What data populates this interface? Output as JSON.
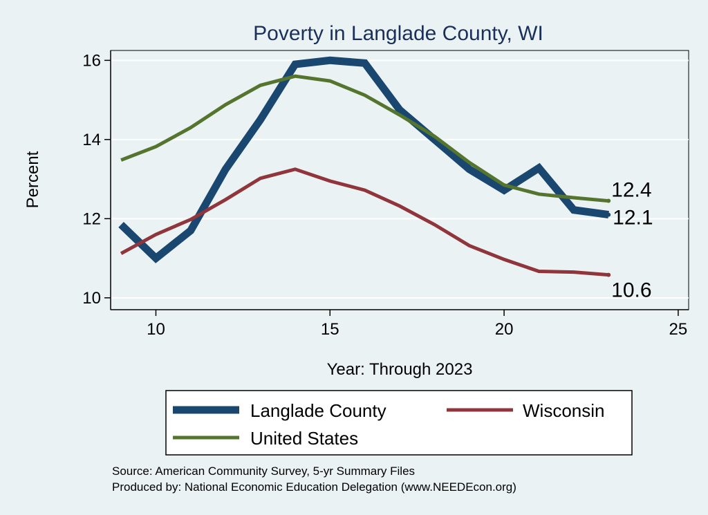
{
  "chart_data": {
    "type": "line",
    "title": "Poverty in Langlade County, WI",
    "xlabel": "Year: Through 2023",
    "ylabel": "Percent",
    "xlim": [
      8.7,
      25.3
    ],
    "ylim": [
      9.7,
      16.25
    ],
    "x_ticks": [
      10,
      15,
      20,
      25
    ],
    "y_ticks": [
      10,
      12,
      14,
      16
    ],
    "grid": true,
    "legend": "bottom",
    "series": [
      {
        "name": "Langlade County",
        "color": "#1a476f",
        "x": [
          9,
          10,
          11,
          12,
          13,
          14,
          15,
          16,
          17,
          18,
          19,
          20,
          21,
          22,
          23
        ],
        "values": [
          11.85,
          11.0,
          11.7,
          13.25,
          14.5,
          15.9,
          16.0,
          15.93,
          14.75,
          14.0,
          13.25,
          12.72,
          13.28,
          12.22,
          12.1
        ],
        "end_label": "12.1"
      },
      {
        "name": "Wisconsin",
        "color": "#90353b",
        "x": [
          9,
          10,
          11,
          12,
          13,
          14,
          15,
          16,
          17,
          18,
          19,
          20,
          21,
          22,
          23
        ],
        "values": [
          11.12,
          11.6,
          11.98,
          12.48,
          13.02,
          13.25,
          12.95,
          12.72,
          12.32,
          11.85,
          11.32,
          10.97,
          10.67,
          10.65,
          10.58
        ],
        "end_label": "10.6"
      },
      {
        "name": "United States",
        "color": "#55752f",
        "x": [
          9,
          10,
          11,
          12,
          13,
          14,
          15,
          16,
          17,
          18,
          19,
          20,
          21,
          22,
          23
        ],
        "values": [
          13.48,
          13.82,
          14.3,
          14.88,
          15.37,
          15.6,
          15.48,
          15.12,
          14.62,
          14.08,
          13.42,
          12.85,
          12.62,
          12.53,
          12.45
        ],
        "end_label": "12.4"
      }
    ],
    "legend_entries": [
      {
        "label": "Langlade County",
        "series": 0
      },
      {
        "label": "Wisconsin",
        "series": 1
      },
      {
        "label": "United States",
        "series": 2
      }
    ],
    "notes": [
      "Source: American Community Survey, 5-yr Summary Files",
      "Produced by: National Economic Education Delegation (www.NEEDEcon.org)"
    ]
  }
}
